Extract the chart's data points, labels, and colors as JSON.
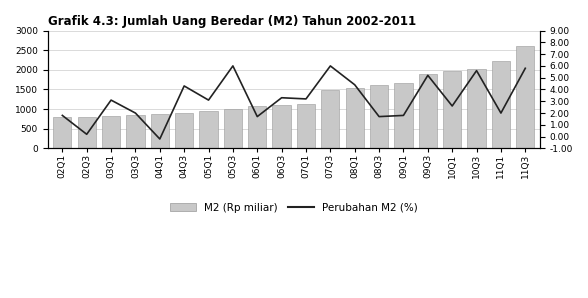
{
  "title": "Grafik 4.3: Jumlah Uang Beredar (M2) Tahun 2002-2011",
  "categories": [
    "02Q1",
    "02Q3",
    "03Q1",
    "03Q3",
    "04Q1",
    "04Q3",
    "05Q1",
    "05Q3",
    "06Q1",
    "06Q3",
    "07Q1",
    "07Q3",
    "08Q1",
    "08Q3",
    "09Q1",
    "09Q3",
    "10Q1",
    "10Q3",
    "11Q1",
    "11Q3"
  ],
  "m2_values": [
    810,
    800,
    820,
    850,
    880,
    910,
    950,
    1000,
    1080,
    1100,
    1130,
    1490,
    1550,
    1620,
    1670,
    1890,
    1960,
    2020,
    2220,
    2600
  ],
  "pct_change": [
    1.8,
    0.2,
    3.1,
    2.0,
    -0.2,
    4.3,
    3.1,
    6.0,
    1.7,
    3.3,
    3.2,
    6.0,
    4.4,
    1.7,
    1.8,
    5.2,
    2.6,
    5.6,
    2.0,
    5.8
  ],
  "bar_color": "#c8c8c8",
  "bar_edgecolor": "#999999",
  "line_color": "#222222",
  "left_ylim": [
    0,
    3000
  ],
  "right_ylim": [
    -1.0,
    9.0
  ],
  "left_yticks": [
    0,
    500,
    1000,
    1500,
    2000,
    2500,
    3000
  ],
  "right_yticks": [
    -1.0,
    0.0,
    1.0,
    2.0,
    3.0,
    4.0,
    5.0,
    6.0,
    7.0,
    8.0,
    9.0
  ],
  "legend_m2": "M2 (Rp miliar)",
  "legend_pct": "Perubahan M2 (%)",
  "title_fontsize": 8.5,
  "axis_fontsize": 6.5,
  "legend_fontsize": 7.5
}
